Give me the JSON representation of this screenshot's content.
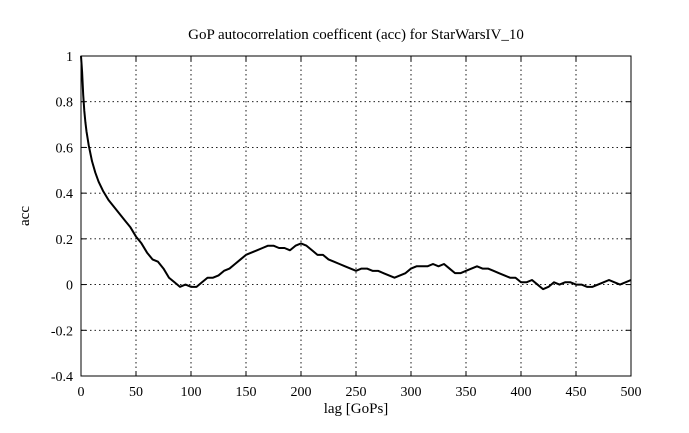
{
  "chart_data": {
    "type": "line",
    "title": "GoP autocorrelation coefficent (acc) for StarWarsIV_10",
    "xlabel": "lag [GoPs]",
    "ylabel": "acc",
    "xlim": [
      0,
      500
    ],
    "ylim": [
      -0.4,
      1
    ],
    "xticks": [
      0,
      50,
      100,
      150,
      200,
      250,
      300,
      350,
      400,
      450,
      500
    ],
    "yticks": [
      -0.4,
      -0.2,
      0,
      0.2,
      0.4,
      0.6,
      0.8,
      1
    ],
    "ytick_labels": [
      "-0.4",
      "-0.2",
      "0",
      "0.2",
      "0.4",
      "0.6",
      "0.8",
      "1"
    ],
    "xtick_labels": [
      "0",
      "50",
      "100",
      "150",
      "200",
      "250",
      "300",
      "350",
      "400",
      "450",
      "500"
    ],
    "grid": true,
    "legend": "none",
    "series": [
      {
        "x": [
          0,
          1,
          2,
          3,
          4,
          5,
          7,
          10,
          13,
          16,
          20,
          25,
          30,
          35,
          40,
          45,
          50,
          55,
          60,
          65,
          70,
          75,
          80,
          85,
          90,
          95,
          100,
          105,
          110,
          115,
          120,
          125,
          130,
          135,
          140,
          145,
          150,
          155,
          160,
          165,
          170,
          175,
          180,
          185,
          190,
          195,
          200,
          205,
          210,
          215,
          220,
          225,
          230,
          235,
          240,
          245,
          250,
          255,
          260,
          265,
          270,
          275,
          280,
          285,
          290,
          295,
          300,
          305,
          310,
          315,
          320,
          325,
          330,
          335,
          340,
          345,
          350,
          355,
          360,
          365,
          370,
          375,
          380,
          385,
          390,
          395,
          400,
          405,
          410,
          415,
          420,
          425,
          430,
          435,
          440,
          445,
          450,
          455,
          460,
          465,
          470,
          475,
          480,
          485,
          490,
          495,
          500
        ],
        "y": [
          1.0,
          0.93,
          0.83,
          0.76,
          0.71,
          0.67,
          0.61,
          0.54,
          0.49,
          0.45,
          0.41,
          0.37,
          0.34,
          0.31,
          0.28,
          0.25,
          0.21,
          0.18,
          0.14,
          0.11,
          0.1,
          0.07,
          0.03,
          0.01,
          -0.01,
          0.0,
          -0.01,
          -0.01,
          0.01,
          0.03,
          0.03,
          0.04,
          0.06,
          0.07,
          0.09,
          0.11,
          0.13,
          0.14,
          0.15,
          0.16,
          0.17,
          0.17,
          0.16,
          0.16,
          0.15,
          0.17,
          0.18,
          0.17,
          0.15,
          0.13,
          0.13,
          0.11,
          0.1,
          0.09,
          0.08,
          0.07,
          0.06,
          0.07,
          0.07,
          0.06,
          0.06,
          0.05,
          0.04,
          0.03,
          0.04,
          0.05,
          0.07,
          0.08,
          0.08,
          0.08,
          0.09,
          0.08,
          0.09,
          0.07,
          0.05,
          0.05,
          0.06,
          0.07,
          0.08,
          0.07,
          0.07,
          0.06,
          0.05,
          0.04,
          0.03,
          0.03,
          0.01,
          0.01,
          0.02,
          0.0,
          -0.02,
          -0.01,
          0.01,
          0.0,
          0.01,
          0.01,
          0.0,
          0.0,
          -0.01,
          -0.01,
          0.0,
          0.01,
          0.02,
          0.01,
          0.0,
          0.01,
          0.02
        ]
      }
    ]
  }
}
